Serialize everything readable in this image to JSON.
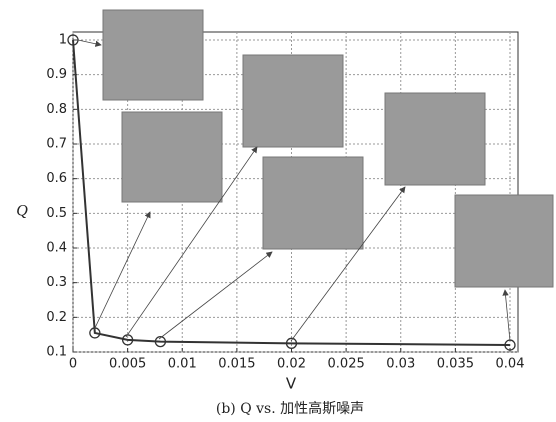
{
  "chart_data": {
    "type": "line",
    "x": [
      0,
      0.002,
      0.005,
      0.008,
      0.02,
      0.04
    ],
    "series": [
      {
        "color": "#333333",
        "values": [
          1,
          0.155,
          0.135,
          0.13,
          0.125,
          0.12
        ]
      }
    ],
    "xlim": [
      0,
      0.04
    ],
    "xticks": [
      0,
      0.005,
      0.01,
      0.015,
      0.02,
      0.025,
      0.03,
      0.035,
      0.04
    ],
    "ylim": [
      0.1,
      1
    ],
    "yticks": [
      0.1,
      0.2,
      0.3,
      0.4,
      0.5,
      0.6,
      0.7,
      0.8,
      0.9,
      1
    ],
    "xlabel": "V",
    "ylabel": "Q",
    "caption": "(b) Q vs. 加性高斯噪声",
    "grid": true
  }
}
